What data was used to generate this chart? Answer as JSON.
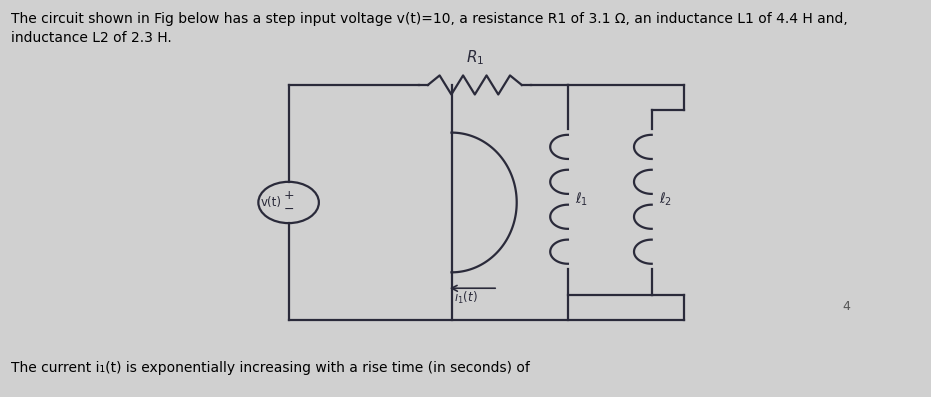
{
  "bg_color": "#d0d0d0",
  "circuit_bg": "#f0f0f0",
  "line_color": "#2a2a3a",
  "line_width": 1.6,
  "title": "The circuit shown in Fig below has a step input voltage v(t)=10, a resistance R1 of 3.1 Ω, an inductance L1 of 4.4 H and,\ninductance L2 of 2.3 H.",
  "bottom_text": "The current i₁(t) is exponentially increasing with a rise time (in seconds) of",
  "R1_label": "$R_1$",
  "L1_label": "$\\ell_1$",
  "L2_label": "$\\ell_2$",
  "vt_label": "v(t)",
  "i1t_label": "$i_1(t)$",
  "corner_char": "4",
  "title_fontsize": 10,
  "label_fontsize": 10
}
